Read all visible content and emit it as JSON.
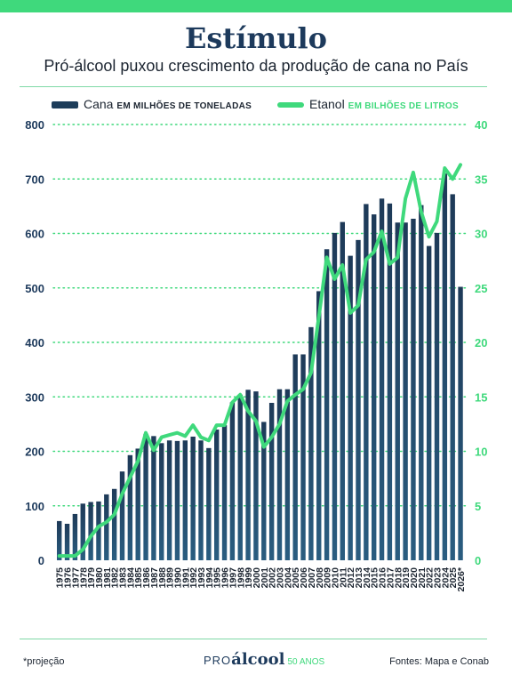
{
  "header": {
    "title": "Estímulo",
    "subtitle": "Pró-álcool puxou crescimento da produção de cana no País"
  },
  "legend": {
    "cana_label": "Cana",
    "cana_unit": "EM MILHÕES DE TONELADAS",
    "etanol_label": "Etanol",
    "etanol_unit": "EM BILHÕES DE LITROS"
  },
  "footer": {
    "note": "*projeção",
    "logo_pro": "PRO",
    "logo_alcool": "álcool",
    "logo_anos": "50 ANOS",
    "sources": "Fontes: Mapa e Conab"
  },
  "colors": {
    "cana": "#1d3d5a",
    "etanol": "#3fd97c",
    "left_axis": "#1d3a5c",
    "right_axis": "#3fd97c",
    "grid": "#3fd97c"
  },
  "chart_data": {
    "type": "bar",
    "categories": [
      "1975",
      "1976",
      "1977",
      "1978",
      "1979",
      "1980",
      "1981",
      "1982",
      "1983",
      "1984",
      "1985",
      "1986",
      "1987",
      "1988",
      "1989",
      "1990",
      "1991",
      "1992",
      "1993",
      "1994",
      "1995",
      "1996",
      "1997",
      "1998",
      "1999",
      "2000",
      "2001",
      "2002",
      "2003",
      "2004",
      "2005",
      "2006",
      "2007",
      "2008",
      "2009",
      "2010",
      "2011",
      "2012",
      "2013",
      "2014",
      "2015",
      "2016",
      "2017",
      "2018",
      "2019",
      "2020",
      "2021",
      "2022",
      "2023",
      "2024",
      "2025",
      "2026*"
    ],
    "series": [
      {
        "name": "Cana",
        "axis": "left",
        "type": "bar",
        "values": [
          72,
          67,
          85,
          104,
          107,
          108,
          121,
          131,
          163,
          193,
          205,
          232,
          228,
          215,
          220,
          219,
          220,
          227,
          220,
          206,
          240,
          248,
          290,
          304,
          313,
          310,
          254,
          289,
          314,
          314,
          378,
          378,
          428,
          494,
          571,
          601,
          621,
          559,
          588,
          654,
          635,
          664,
          655,
          620,
          620,
          627,
          652,
          577,
          601,
          710,
          672,
          502
        ]
      },
      {
        "name": "Etanol",
        "axis": "right",
        "type": "line",
        "values": [
          0.4,
          0.4,
          0.4,
          1.0,
          2.2,
          3.1,
          3.5,
          4.2,
          6.1,
          7.6,
          9.1,
          11.7,
          10.1,
          11.3,
          11.5,
          11.7,
          11.4,
          12.4,
          11.3,
          11.0,
          12.4,
          12.4,
          14.5,
          15.2,
          13.7,
          12.8,
          10.4,
          11.3,
          12.5,
          14.6,
          15.2,
          15.7,
          17.2,
          22.4,
          27.8,
          25.8,
          27.1,
          22.7,
          23.4,
          27.6,
          28.3,
          30.2,
          27.2,
          27.8,
          33.2,
          35.6,
          32.0,
          29.7,
          31.1,
          36.0,
          35.0,
          36.3
        ]
      }
    ],
    "y_left": {
      "ticks": [
        "0",
        "100",
        "200",
        "300",
        "400",
        "500",
        "600",
        "700",
        "800"
      ],
      "ylim": [
        0,
        800
      ]
    },
    "y_right": {
      "ticks": [
        "0",
        "5",
        "10",
        "15",
        "20",
        "25",
        "30",
        "35",
        "40"
      ],
      "ylim": [
        0,
        40
      ]
    },
    "grid": true,
    "legend_position": "top"
  }
}
